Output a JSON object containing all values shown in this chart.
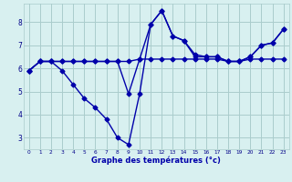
{
  "background_color": "#d8f0f0",
  "grid_color": "#aacccc",
  "line_color": "#0000aa",
  "xlabel": "Graphe des températures (°c)",
  "xlim": [
    -0.5,
    23.5
  ],
  "ylim": [
    2.5,
    8.8
  ],
  "yticks": [
    3,
    4,
    5,
    6,
    7,
    8
  ],
  "xticks": [
    0,
    1,
    2,
    3,
    4,
    5,
    6,
    7,
    8,
    9,
    10,
    11,
    12,
    13,
    14,
    15,
    16,
    17,
    18,
    19,
    20,
    21,
    22,
    23
  ],
  "line1_x": [
    0,
    1,
    2,
    3,
    4,
    5,
    6,
    7,
    8,
    9,
    10,
    11,
    12,
    13,
    14,
    15,
    16,
    17,
    18,
    19,
    20,
    21,
    22,
    23
  ],
  "line1_y": [
    5.9,
    6.3,
    6.3,
    6.3,
    6.3,
    6.3,
    6.3,
    6.3,
    6.3,
    6.3,
    6.4,
    6.4,
    6.4,
    6.4,
    6.4,
    6.4,
    6.4,
    6.4,
    6.3,
    6.3,
    6.4,
    6.4,
    6.4,
    6.4
  ],
  "line2_x": [
    0,
    1,
    2,
    3,
    4,
    5,
    6,
    7,
    8,
    9,
    10,
    11,
    12,
    13,
    14,
    15,
    16,
    17,
    18,
    19,
    20,
    21,
    22,
    23
  ],
  "line2_y": [
    5.9,
    6.3,
    6.3,
    5.9,
    5.3,
    4.7,
    4.3,
    3.8,
    3.0,
    2.7,
    4.9,
    7.9,
    8.5,
    7.4,
    7.2,
    6.6,
    6.5,
    6.5,
    6.3,
    6.3,
    6.5,
    7.0,
    7.1,
    7.7
  ],
  "line3_x": [
    0,
    1,
    2,
    3,
    4,
    5,
    6,
    7,
    8,
    9,
    10,
    11,
    12,
    13,
    14,
    15,
    16,
    17,
    18,
    19,
    20,
    21,
    22,
    23
  ],
  "line3_y": [
    5.9,
    6.3,
    6.3,
    6.3,
    6.3,
    6.3,
    6.3,
    6.3,
    6.3,
    4.9,
    6.4,
    7.9,
    8.5,
    7.4,
    7.2,
    6.5,
    6.5,
    6.5,
    6.3,
    6.3,
    6.5,
    7.0,
    7.1,
    7.7
  ]
}
